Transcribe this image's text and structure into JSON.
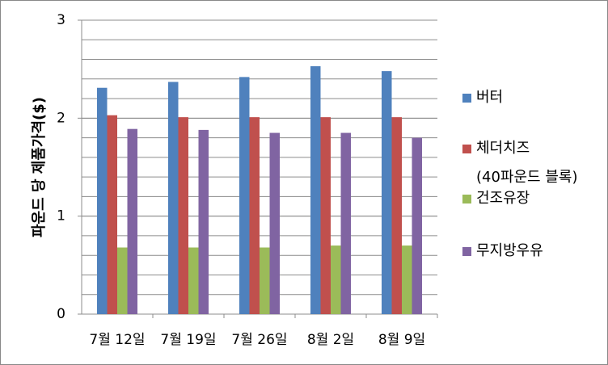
{
  "chart_data": {
    "type": "bar",
    "y_label": "파운드 당 제품가격($)",
    "categories": [
      "7월 12일",
      "7월 19일",
      "7월 26일",
      "8월 2일",
      "8월 9일"
    ],
    "series": [
      {
        "name": "버터",
        "color": "#4f81bd",
        "values": [
          2.31,
          2.37,
          2.42,
          2.53,
          2.48
        ]
      },
      {
        "name": "체더치즈\n(40파운드 블록)",
        "color": "#c0504d",
        "values": [
          2.03,
          2.01,
          2.01,
          2.01,
          2.01
        ]
      },
      {
        "name": "건조유장",
        "color": "#9bbb59",
        "values": [
          0.68,
          0.68,
          0.68,
          0.7,
          0.7
        ]
      },
      {
        "name": "무지방우유",
        "color": "#8064a2",
        "values": [
          1.89,
          1.88,
          1.85,
          1.85,
          1.8
        ]
      }
    ],
    "ylim": [
      0,
      3
    ],
    "yticks": [
      0,
      1,
      2,
      3
    ],
    "minor_grid_step": 0.2,
    "grid": true,
    "legend": "right"
  }
}
